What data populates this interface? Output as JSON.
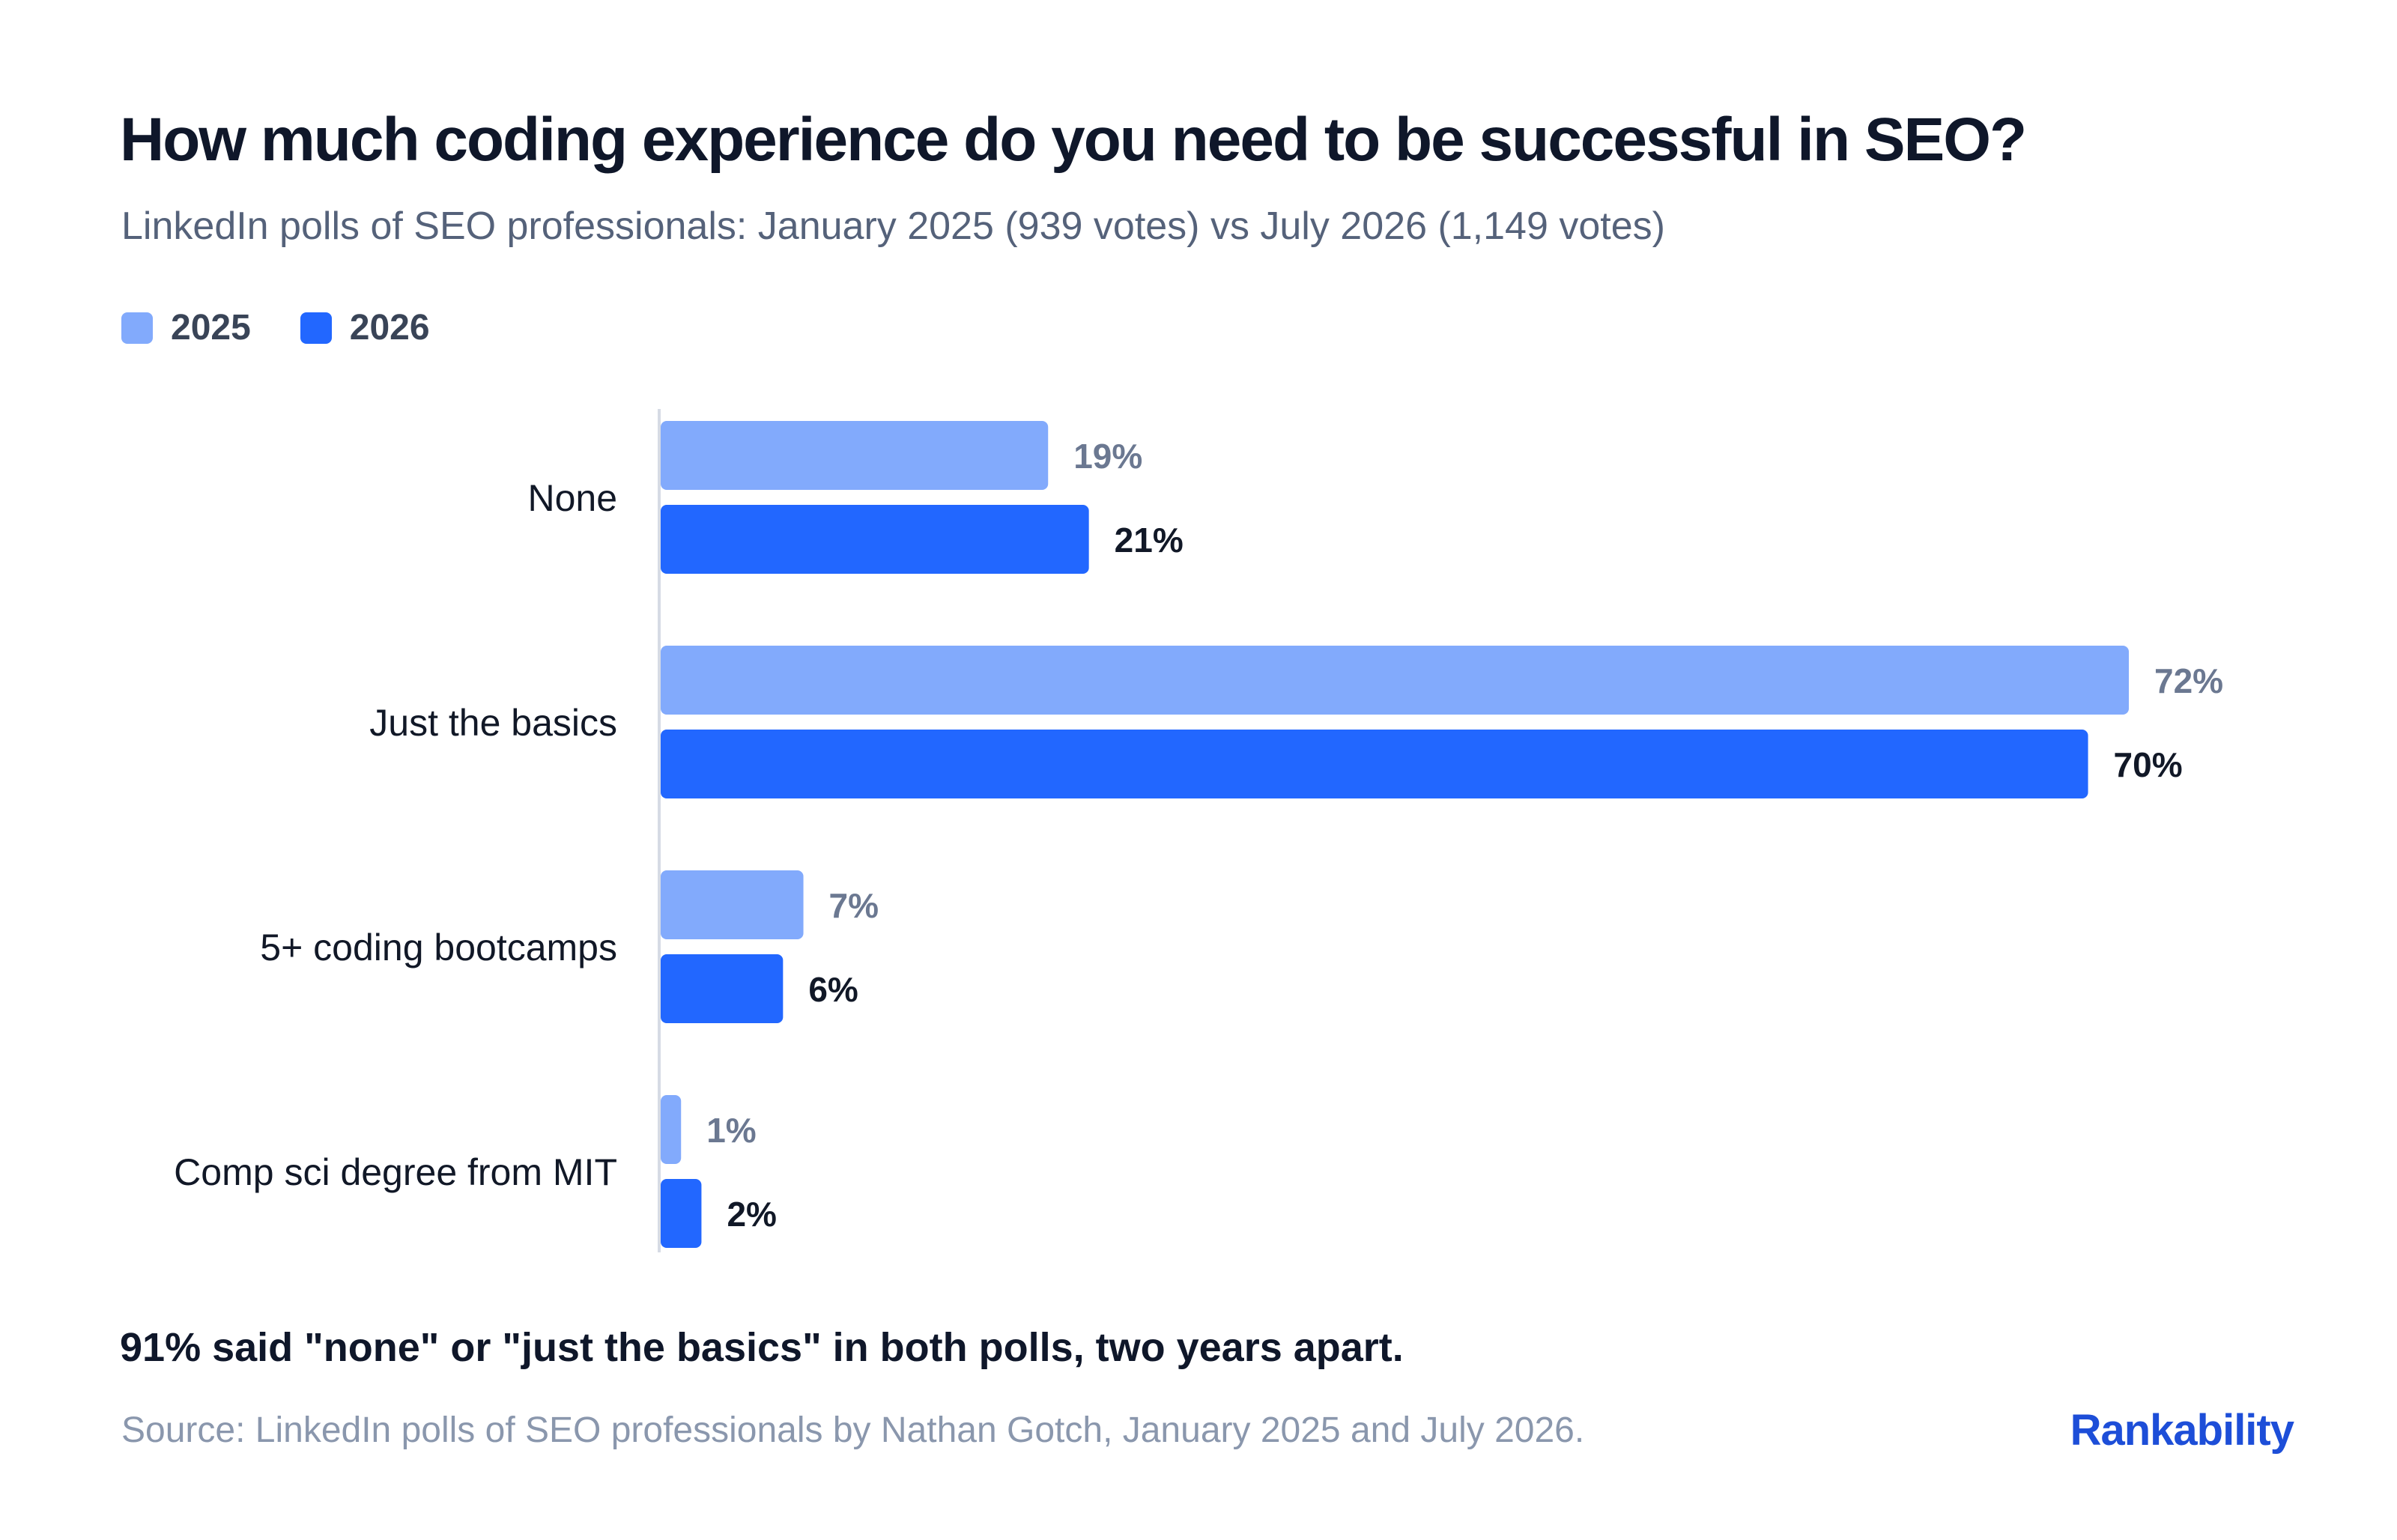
{
  "colors": {
    "series_2025": "#82aafc",
    "series_2026": "#2267ff",
    "title": "#0f172a",
    "subtitle": "#55627a",
    "source": "#8a97ad",
    "brand": "#1d4ed8",
    "axis": "#d6dbe4",
    "value_2025": "#6b7891",
    "value_2026": "#111827"
  },
  "footer": {
    "note": "91% said \"none\" or \"just the basics\" in both polls, two years apart.",
    "source": "Source: LinkedIn polls of SEO professionals by Nathan Gotch, January 2025 and July 2026.",
    "brand": "Rankability"
  },
  "chart_data": {
    "type": "bar",
    "orientation": "horizontal",
    "title": "How much coding experience do you need to be successful in SEO?",
    "subtitle": "LinkedIn polls of SEO professionals: January 2025 (939 votes) vs July 2026 (1,149 votes)",
    "categories": [
      "None",
      "Just the basics",
      "5+ coding bootcamps",
      "Comp sci degree from MIT"
    ],
    "series": [
      {
        "name": "2025",
        "values": [
          19,
          72,
          7,
          1
        ],
        "labels": [
          "19%",
          "72%",
          "7%",
          "1%"
        ]
      },
      {
        "name": "2026",
        "values": [
          21,
          70,
          6,
          2
        ],
        "labels": [
          "21%",
          "70%",
          "6%",
          "2%"
        ]
      }
    ],
    "xlim": [
      0,
      72
    ],
    "grid": false,
    "legend_position": "top-left"
  }
}
